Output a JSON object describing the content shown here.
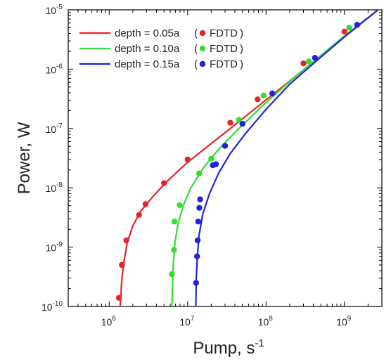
{
  "chart_data": {
    "type": "line",
    "xscale": "log",
    "yscale": "log",
    "xlim": [
      300000,
      3000000000
    ],
    "ylim": [
      1e-10,
      1e-05
    ],
    "xlabel": {
      "base": "Pump, s",
      "sup": "-1"
    },
    "ylabel": "Power, W",
    "xticks": [
      {
        "value": 1000000,
        "base": "10",
        "exp": "6"
      },
      {
        "value": 10000000,
        "base": "10",
        "exp": "7"
      },
      {
        "value": 100000000,
        "base": "10",
        "exp": "8"
      },
      {
        "value": 1000000000,
        "base": "10",
        "exp": "9"
      }
    ],
    "yticks": [
      {
        "value": 1e-10,
        "base": "10",
        "exp": "-10"
      },
      {
        "value": 1e-09,
        "base": "10",
        "exp": "-9"
      },
      {
        "value": 1e-08,
        "base": "10",
        "exp": "-8"
      },
      {
        "value": 1e-07,
        "base": "10",
        "exp": "-7"
      },
      {
        "value": 1e-06,
        "base": "10",
        "exp": "-6"
      },
      {
        "value": 1e-05,
        "base": "10",
        "exp": "-5"
      }
    ],
    "grid": false,
    "legend_position": "top-left",
    "series": [
      {
        "line_label": "depth = 0.05a",
        "marker_label": "FDTD",
        "color": "#e8232a",
        "line": [
          [
            1380000,
            1e-10
          ],
          [
            1450000,
            3e-10
          ],
          [
            1550000,
            6e-10
          ],
          [
            1700000,
            1.2e-09
          ],
          [
            2000000,
            2.3e-09
          ],
          [
            2500000,
            4e-09
          ],
          [
            3500000,
            6.8e-09
          ],
          [
            5500000,
            1.3e-08
          ],
          [
            10000000,
            2.7e-08
          ],
          [
            20000000,
            5.6e-08
          ],
          [
            40000000,
            1.15e-07
          ],
          [
            80000000,
            2.4e-07
          ],
          [
            200000000,
            6.3e-07
          ],
          [
            500000000,
            1.7e-06
          ],
          [
            1000000000,
            3.6e-06
          ],
          [
            2800000000,
            1.05e-05
          ]
        ],
        "points": [
          [
            1330000,
            1.4e-10
          ],
          [
            1450000,
            5e-10
          ],
          [
            1650000,
            1.3e-09
          ],
          [
            2400000,
            3.5e-09
          ],
          [
            2900000,
            5.3e-09
          ],
          [
            5000000,
            1.2e-08
          ],
          [
            10000000,
            3e-08
          ],
          [
            35000000,
            1.25e-07
          ],
          [
            78000000,
            3.1e-07
          ],
          [
            300000000,
            1.25e-06
          ],
          [
            1000000000,
            4.3e-06
          ]
        ]
      },
      {
        "line_label": "depth = 0.10a",
        "marker_label": "FDTD",
        "color": "#33dd33",
        "line": [
          [
            6300000,
            1e-10
          ],
          [
            6400000,
            2e-10
          ],
          [
            6550000,
            5e-10
          ],
          [
            6900000,
            1.2e-09
          ],
          [
            7500000,
            2.4e-09
          ],
          [
            8800000,
            5e-09
          ],
          [
            11000000,
            1e-08
          ],
          [
            16000000,
            2.2e-08
          ],
          [
            25000000,
            4.5e-08
          ],
          [
            45000000,
            1e-07
          ],
          [
            90000000,
            2.4e-07
          ],
          [
            200000000,
            6.2e-07
          ],
          [
            500000000,
            1.7e-06
          ],
          [
            1000000000,
            3.6e-06
          ],
          [
            2800000000,
            1.05e-05
          ]
        ],
        "points": [
          [
            6300000,
            3.5e-10
          ],
          [
            6700000,
            9e-10
          ],
          [
            6800000,
            2.7e-09
          ],
          [
            7900000,
            5.1e-09
          ],
          [
            14000000,
            1.75e-08
          ],
          [
            20000000,
            3.1e-08
          ],
          [
            45000000,
            1.4e-07
          ],
          [
            93000000,
            3.6e-07
          ],
          [
            350000000,
            1.35e-06
          ],
          [
            1150000000,
            5e-06
          ]
        ]
      },
      {
        "line_label": "depth = 0.15a",
        "marker_label": "FDTD",
        "color": "#2222dd",
        "line": [
          [
            12700000,
            1e-10
          ],
          [
            12900000,
            3e-10
          ],
          [
            13300000,
            7e-10
          ],
          [
            14000000,
            1.6e-09
          ],
          [
            15500000,
            3.5e-09
          ],
          [
            19000000,
            8e-09
          ],
          [
            25000000,
            1.8e-08
          ],
          [
            35000000,
            3.8e-08
          ],
          [
            55000000,
            8.3e-08
          ],
          [
            100000000,
            2.1e-07
          ],
          [
            200000000,
            5.6e-07
          ],
          [
            500000000,
            1.6e-06
          ],
          [
            1000000000,
            3.5e-06
          ],
          [
            2800000000,
            1.05e-05
          ]
        ],
        "points": [
          [
            12800000,
            2.5e-10
          ],
          [
            13200000,
            7e-10
          ],
          [
            13400000,
            1.3e-09
          ],
          [
            13600000,
            2.7e-09
          ],
          [
            14100000,
            4.6e-09
          ],
          [
            14400000,
            6.4e-09
          ],
          [
            21000000,
            2.4e-08
          ],
          [
            23000000,
            2.5e-08
          ],
          [
            30000000,
            5.1e-08
          ],
          [
            50000000,
            1.2e-07
          ],
          [
            120000000,
            3.9e-07
          ],
          [
            420000000,
            1.55e-06
          ],
          [
            1450000000,
            5.6e-06
          ]
        ]
      }
    ]
  }
}
